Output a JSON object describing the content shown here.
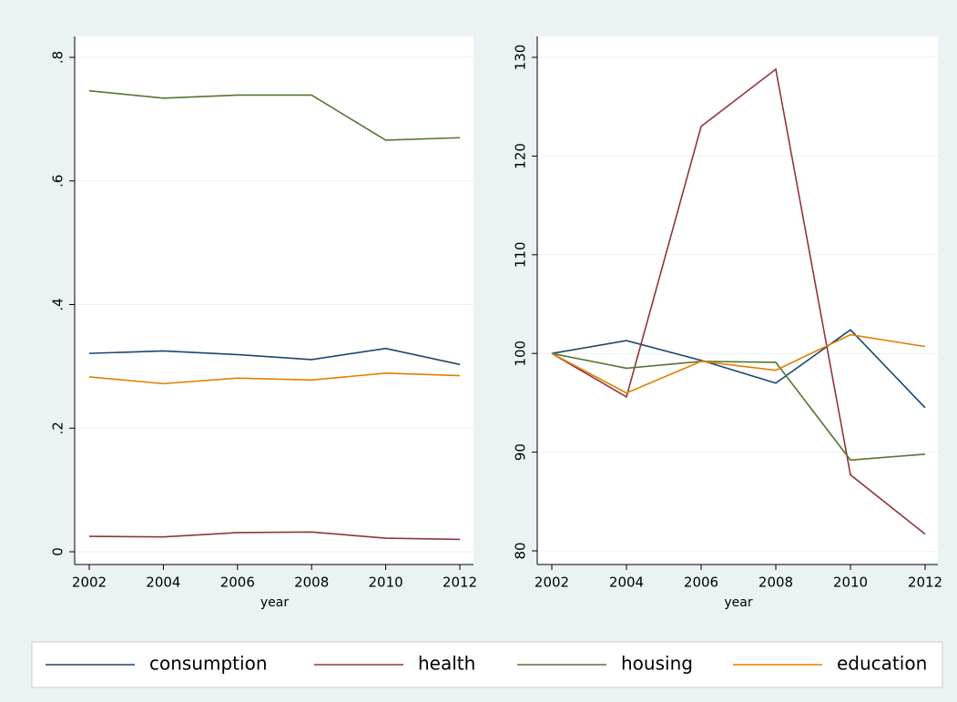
{
  "chart_data": [
    {
      "type": "line",
      "xlabel": "year",
      "x": [
        2002,
        2004,
        2006,
        2008,
        2010,
        2012
      ],
      "xlim": [
        2002,
        2012
      ],
      "xticks": [
        2002,
        2004,
        2006,
        2008,
        2010,
        2012
      ],
      "ylim": [
        0,
        0.8
      ],
      "yticks": [
        0,
        {
          "value": 0.2,
          "label": ".2"
        },
        {
          "value": 0.4,
          "label": ".4"
        },
        {
          "value": 0.6,
          "label": ".6"
        },
        {
          "value": 0.8,
          "label": ".8"
        }
      ],
      "grid": true,
      "series": [
        {
          "name": "consumption",
          "color": "#1a476f",
          "values": [
            0.321,
            0.325,
            0.319,
            0.311,
            0.329,
            0.303
          ]
        },
        {
          "name": "health",
          "color": "#90353b",
          "values": [
            0.025,
            0.024,
            0.031,
            0.032,
            0.022,
            0.02
          ]
        },
        {
          "name": "housing",
          "color": "#55752f",
          "values": [
            0.746,
            0.734,
            0.739,
            0.739,
            0.666,
            0.67
          ]
        },
        {
          "name": "education",
          "color": "#e37e00",
          "values": [
            0.283,
            0.272,
            0.281,
            0.278,
            0.289,
            0.285
          ]
        }
      ]
    },
    {
      "type": "line",
      "xlabel": "year",
      "x": [
        2002,
        2004,
        2006,
        2008,
        2010,
        2012
      ],
      "xlim": [
        2002,
        2012
      ],
      "xticks": [
        2002,
        2004,
        2006,
        2008,
        2010,
        2012
      ],
      "ylim": [
        80,
        130
      ],
      "yticks": [
        80,
        90,
        100,
        110,
        120,
        130
      ],
      "grid": true,
      "series": [
        {
          "name": "consumption",
          "color": "#1a476f",
          "values": [
            100,
            101.3,
            99.3,
            97.0,
            102.4,
            94.5
          ]
        },
        {
          "name": "health",
          "color": "#90353b",
          "values": [
            100,
            95.6,
            123,
            128.8,
            87.7,
            81.7
          ]
        },
        {
          "name": "housing",
          "color": "#55752f",
          "values": [
            100,
            98.5,
            99.2,
            99.1,
            89.2,
            89.8
          ]
        },
        {
          "name": "education",
          "color": "#e37e00",
          "values": [
            100,
            96,
            99.2,
            98.3,
            101.9,
            100.7
          ]
        }
      ]
    }
  ]
}
